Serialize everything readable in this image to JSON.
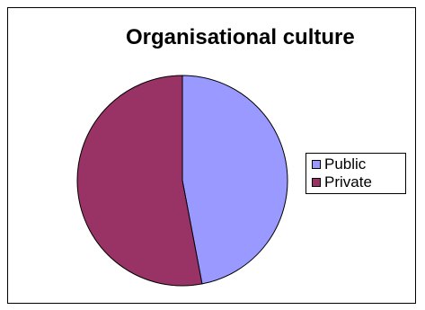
{
  "chart_data": {
    "type": "pie",
    "title": "Organisational culture",
    "legend_position": "right",
    "slices": [
      {
        "label": "Public",
        "value": 47,
        "color": "#9999FF"
      },
      {
        "label": "Private",
        "value": 53,
        "color": "#993366"
      }
    ]
  }
}
